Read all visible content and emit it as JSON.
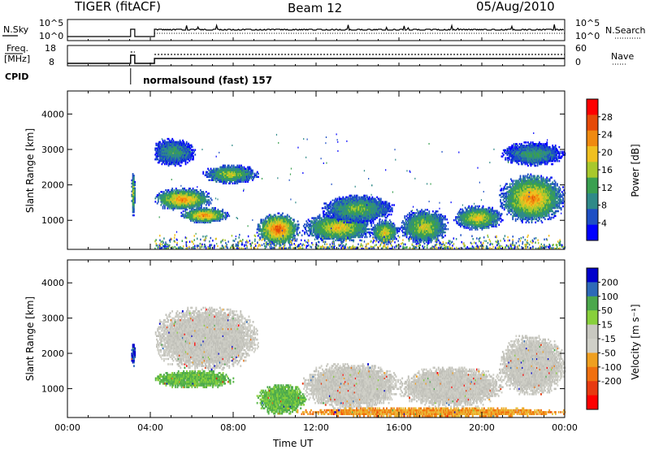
{
  "header": {
    "radar": "TIGER (fitACF)",
    "beam": "Beam 12",
    "date": "05/Aug/2010"
  },
  "top_panel": {
    "left_label": "N.Sky",
    "left_ticks": [
      "10^5",
      "10^0"
    ],
    "right_ticks": [
      "10^5",
      "10^0"
    ],
    "right_label": "N.Search"
  },
  "freq_panel": {
    "left_label_1": "Freq.",
    "left_label_2": "[MHz]",
    "left_ticks": [
      "18",
      "8"
    ],
    "right_ticks": [
      "60",
      "0"
    ],
    "right_label": "Nave"
  },
  "cpid": {
    "label": "CPID",
    "program": "normalsound (fast) 157"
  },
  "colors": {
    "power": [
      "#0000ff",
      "#1e4fc4",
      "#2f8a88",
      "#3aa050",
      "#a8c82c",
      "#f0c020",
      "#f08a10",
      "#e64a08",
      "#ff0000"
    ],
    "velocity": [
      "#0000cc",
      "#2e6ab8",
      "#4ca84c",
      "#88d03c",
      "#c8c8c0",
      "#d0d0c8",
      "#f0a020",
      "#f07010",
      "#e83a10",
      "#ff0000"
    ]
  },
  "chart_data": [
    {
      "type": "heatmap",
      "name": "power",
      "xlabel": "",
      "ylabel": "Slant Range [km]",
      "xlim": [
        0,
        24
      ],
      "ylim": [
        180,
        4650
      ],
      "y_ticks": [
        1000,
        2000,
        3000,
        4000
      ],
      "colorbar_label": "Power [dB]",
      "colorbar_ticks": [
        4,
        8,
        12,
        16,
        20,
        24,
        28
      ],
      "colorbar_range": [
        0,
        32
      ],
      "data_gaps_ut": [
        [
          0,
          3.05
        ],
        [
          3.25,
          4.2
        ]
      ],
      "regions": [
        {
          "t": [
            4.1,
            7.0
          ],
          "r": [
            1250,
            1900
          ],
          "peak": 28
        },
        {
          "t": [
            5.4,
            7.8
          ],
          "r": [
            900,
            1350
          ],
          "peak": 28
        },
        {
          "t": [
            6.5,
            9.2
          ],
          "r": [
            2000,
            2550
          ],
          "peak": 20
        },
        {
          "t": [
            4.0,
            6.2
          ],
          "r": [
            2500,
            3300
          ],
          "peak": 14
        },
        {
          "t": [
            9.1,
            11.2
          ],
          "r": [
            250,
            1200
          ],
          "peak": 32
        },
        {
          "t": [
            11.3,
            14.8
          ],
          "r": [
            350,
            1200
          ],
          "peak": 24
        },
        {
          "t": [
            12.2,
            15.8
          ],
          "r": [
            900,
            1700
          ],
          "peak": 18
        },
        {
          "t": [
            14.6,
            16.0
          ],
          "r": [
            300,
            1000
          ],
          "peak": 24
        },
        {
          "t": [
            16.0,
            18.4
          ],
          "r": [
            300,
            1300
          ],
          "peak": 22
        },
        {
          "t": [
            18.6,
            21.0
          ],
          "r": [
            700,
            1400
          ],
          "peak": 24
        },
        {
          "t": [
            20.8,
            24.0
          ],
          "r": [
            900,
            2300
          ],
          "peak": 28
        },
        {
          "t": [
            20.9,
            24.0
          ],
          "r": [
            2500,
            3200
          ],
          "peak": 14
        },
        {
          "t": [
            3.05,
            3.25
          ],
          "r": [
            1100,
            2400
          ],
          "peak": 22
        }
      ]
    },
    {
      "type": "heatmap",
      "name": "velocity",
      "xlabel": "Time UT",
      "ylabel": "Slant Range [km]",
      "xlim": [
        0,
        24
      ],
      "ylim": [
        180,
        4650
      ],
      "x_ticks": [
        "00:00",
        "04:00",
        "08:00",
        "12:00",
        "16:00",
        "20:00",
        "00:00"
      ],
      "x_tick_values": [
        0,
        4,
        8,
        12,
        16,
        20,
        24
      ],
      "y_ticks": [
        1000,
        2000,
        3000,
        4000
      ],
      "colorbar_label": "Velocity [m s⁻¹]",
      "colorbar_ticks": [
        "200",
        "100",
        "50",
        "15",
        "-15",
        "-50",
        "-100",
        "-200"
      ],
      "data_gaps_ut": [
        [
          0,
          3.05
        ],
        [
          3.25,
          4.2
        ]
      ],
      "regions": [
        {
          "t": [
            4.1,
            8.0
          ],
          "r": [
            1000,
            1500
          ],
          "v": "green"
        },
        {
          "t": [
            4.1,
            9.2
          ],
          "r": [
            1500,
            3300
          ],
          "v": "grey"
        },
        {
          "t": [
            9.1,
            11.5
          ],
          "r": [
            250,
            1100
          ],
          "v": "green"
        },
        {
          "t": [
            11.3,
            16.0
          ],
          "r": [
            400,
            1700
          ],
          "v": "grey"
        },
        {
          "t": [
            11.0,
            24.0
          ],
          "r": [
            180,
            450
          ],
          "v": "orange"
        },
        {
          "t": [
            16.0,
            21.0
          ],
          "r": [
            450,
            1600
          ],
          "v": "grey"
        },
        {
          "t": [
            20.8,
            24.0
          ],
          "r": [
            800,
            2500
          ],
          "v": "grey"
        },
        {
          "t": [
            3.05,
            3.25
          ],
          "r": [
            1600,
            2300
          ],
          "v": "blue"
        }
      ]
    }
  ]
}
